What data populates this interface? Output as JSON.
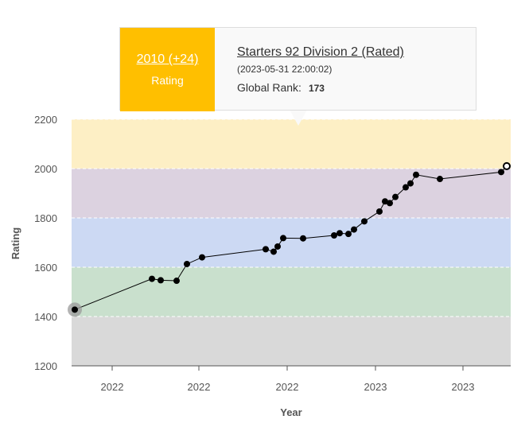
{
  "tooltip": {
    "rating": "2010 (+24)",
    "rating_label": "Rating",
    "contest_name": "Starters 92 Division 2 (Rated)",
    "contest_date": "(2023-05-31 22:00:02)",
    "rank_label": "Global Rank:",
    "rank_value": "173",
    "accent_color": "#ffbf00"
  },
  "chart_data": {
    "type": "line",
    "xlabel": "Year",
    "ylabel": "Rating",
    "ylim": [
      1200,
      2200
    ],
    "yticks": [
      1200,
      1400,
      1600,
      1800,
      2000,
      2200
    ],
    "xticks": [
      "2022",
      "2022",
      "2022",
      "2023",
      "2023"
    ],
    "grid": false,
    "bands": [
      {
        "from": 1200,
        "to": 1400,
        "color": "#d9d9d9"
      },
      {
        "from": 1400,
        "to": 1600,
        "color": "#c9e0cd"
      },
      {
        "from": 1600,
        "to": 1800,
        "color": "#ccd9f3"
      },
      {
        "from": 1800,
        "to": 2000,
        "color": "#dcd2e0"
      },
      {
        "from": 2000,
        "to": 2200,
        "color": "#fdefc5"
      }
    ],
    "line_color": "#000000",
    "series": [
      {
        "values": [
          1428,
          1553,
          1547,
          1545,
          1613,
          1640,
          1673,
          1663,
          1684,
          1718,
          1717,
          1729,
          1738,
          1735,
          1753,
          1786,
          1826,
          1867,
          1860,
          1885,
          1924,
          1940,
          1975,
          1958,
          1986,
          2010
        ],
        "highlight_first": true,
        "hollow_last": true
      }
    ]
  }
}
